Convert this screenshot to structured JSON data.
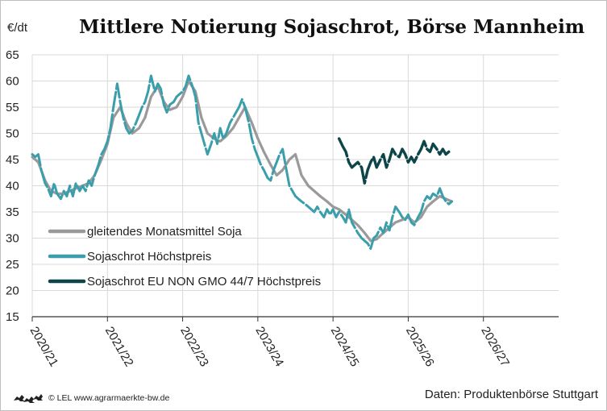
{
  "title": "Mittlere Notierung Sojaschrot, Börse Mannheim",
  "footer": {
    "logo_icon": "baden-wuerttemberg-lions-icon",
    "copyright": "© LEL www.agrarmaerkte-bw.de",
    "source": "Daten: Produktenbörse Stuttgart"
  },
  "colors": {
    "average": "#9a9a9a",
    "soy_high": "#3a9eab",
    "eu_non_gmo": "#0d4549",
    "grid": "#d9d9d9"
  },
  "chart_data": {
    "type": "line",
    "title": "Mittlere Notierung Sojaschrot, Börse Mannheim",
    "ylabel": "€/dt",
    "xlabel": "",
    "ylim": [
      15,
      65
    ],
    "yticks": [
      15,
      20,
      25,
      30,
      35,
      40,
      45,
      50,
      55,
      60,
      65
    ],
    "xlim": [
      2020,
      2027
    ],
    "xticks": [
      {
        "value": 2020,
        "label": "2020/21"
      },
      {
        "value": 2021,
        "label": "2021/22"
      },
      {
        "value": 2022,
        "label": "2022/23"
      },
      {
        "value": 2023,
        "label": "2023/24"
      },
      {
        "value": 2024,
        "label": "2024/25"
      },
      {
        "value": 2025,
        "label": "2025/26"
      },
      {
        "value": 2026,
        "label": "2026/27"
      }
    ],
    "grid": true,
    "legend": "left",
    "series": [
      {
        "name": "gleitendes Monatsmittel Soja",
        "style": "solid",
        "points": [
          [
            2020.0,
            45.5
          ],
          [
            2020.08,
            44.5
          ],
          [
            2020.17,
            41
          ],
          [
            2020.25,
            39
          ],
          [
            2020.33,
            38.5
          ],
          [
            2020.42,
            38.5
          ],
          [
            2020.5,
            39
          ],
          [
            2020.58,
            39.5
          ],
          [
            2020.67,
            40
          ],
          [
            2020.75,
            40.5
          ],
          [
            2020.83,
            42
          ],
          [
            2020.92,
            45
          ],
          [
            2021.0,
            48
          ],
          [
            2021.08,
            53
          ],
          [
            2021.17,
            55
          ],
          [
            2021.25,
            52
          ],
          [
            2021.33,
            50
          ],
          [
            2021.42,
            51
          ],
          [
            2021.5,
            53
          ],
          [
            2021.58,
            57
          ],
          [
            2021.67,
            59
          ],
          [
            2021.75,
            56
          ],
          [
            2021.83,
            54.5
          ],
          [
            2021.92,
            55
          ],
          [
            2022.0,
            57
          ],
          [
            2022.08,
            60
          ],
          [
            2022.17,
            58
          ],
          [
            2022.25,
            53
          ],
          [
            2022.33,
            50
          ],
          [
            2022.42,
            49
          ],
          [
            2022.5,
            48.5
          ],
          [
            2022.58,
            49.5
          ],
          [
            2022.67,
            51
          ],
          [
            2022.75,
            53
          ],
          [
            2022.83,
            55
          ],
          [
            2022.92,
            52
          ],
          [
            2023.0,
            49
          ],
          [
            2023.08,
            46.5
          ],
          [
            2023.17,
            44
          ],
          [
            2023.25,
            42
          ],
          [
            2023.33,
            43
          ],
          [
            2023.42,
            45
          ],
          [
            2023.5,
            46
          ],
          [
            2023.58,
            42
          ],
          [
            2023.67,
            40
          ],
          [
            2023.75,
            39
          ],
          [
            2023.83,
            38
          ],
          [
            2023.92,
            37
          ],
          [
            2024.0,
            36
          ],
          [
            2024.08,
            35.5
          ],
          [
            2024.17,
            34.5
          ],
          [
            2024.25,
            33.5
          ],
          [
            2024.33,
            32.5
          ],
          [
            2024.42,
            31
          ],
          [
            2024.5,
            29.5
          ],
          [
            2024.58,
            29.8
          ],
          [
            2024.67,
            31
          ],
          [
            2024.75,
            32
          ],
          [
            2024.83,
            33
          ],
          [
            2024.92,
            33.5
          ],
          [
            2025.0,
            34
          ],
          [
            2025.08,
            33
          ],
          [
            2025.17,
            34
          ],
          [
            2025.25,
            36
          ],
          [
            2025.33,
            37
          ],
          [
            2025.42,
            38
          ],
          [
            2025.5,
            37.5
          ],
          [
            2025.58,
            37
          ]
        ]
      },
      {
        "name": "Sojaschrot Höchstpreis",
        "style": "dashed",
        "points": [
          [
            2020.0,
            46
          ],
          [
            2020.04,
            45.5
          ],
          [
            2020.08,
            46
          ],
          [
            2020.12,
            43
          ],
          [
            2020.17,
            40.5
          ],
          [
            2020.21,
            39.5
          ],
          [
            2020.25,
            38
          ],
          [
            2020.29,
            40.5
          ],
          [
            2020.33,
            38.5
          ],
          [
            2020.38,
            37.5
          ],
          [
            2020.42,
            39
          ],
          [
            2020.46,
            38
          ],
          [
            2020.5,
            40
          ],
          [
            2020.54,
            38
          ],
          [
            2020.58,
            40.5
          ],
          [
            2020.63,
            39
          ],
          [
            2020.67,
            40
          ],
          [
            2020.71,
            39
          ],
          [
            2020.75,
            41
          ],
          [
            2020.79,
            40
          ],
          [
            2020.83,
            42
          ],
          [
            2020.88,
            44
          ],
          [
            2020.92,
            46
          ],
          [
            2020.96,
            47
          ],
          [
            2021.0,
            48.5
          ],
          [
            2021.04,
            51
          ],
          [
            2021.08,
            55
          ],
          [
            2021.13,
            59.5
          ],
          [
            2021.17,
            56
          ],
          [
            2021.21,
            53
          ],
          [
            2021.25,
            51
          ],
          [
            2021.29,
            50
          ],
          [
            2021.33,
            50.5
          ],
          [
            2021.38,
            52
          ],
          [
            2021.42,
            53.5
          ],
          [
            2021.46,
            55
          ],
          [
            2021.5,
            56
          ],
          [
            2021.54,
            58
          ],
          [
            2021.58,
            61
          ],
          [
            2021.63,
            58
          ],
          [
            2021.67,
            59.5
          ],
          [
            2021.71,
            58.5
          ],
          [
            2021.75,
            55.5
          ],
          [
            2021.79,
            54
          ],
          [
            2021.83,
            55.5
          ],
          [
            2021.88,
            56
          ],
          [
            2021.92,
            57
          ],
          [
            2021.96,
            57.5
          ],
          [
            2022.0,
            58
          ],
          [
            2022.04,
            59
          ],
          [
            2022.08,
            61
          ],
          [
            2022.13,
            59
          ],
          [
            2022.17,
            57
          ],
          [
            2022.21,
            52
          ],
          [
            2022.25,
            50
          ],
          [
            2022.29,
            48
          ],
          [
            2022.33,
            46
          ],
          [
            2022.38,
            48
          ],
          [
            2022.42,
            50
          ],
          [
            2022.46,
            48
          ],
          [
            2022.5,
            51
          ],
          [
            2022.54,
            49
          ],
          [
            2022.58,
            50
          ],
          [
            2022.63,
            52
          ],
          [
            2022.67,
            53
          ],
          [
            2022.71,
            54
          ],
          [
            2022.75,
            55
          ],
          [
            2022.79,
            56.5
          ],
          [
            2022.83,
            55
          ],
          [
            2022.88,
            52
          ],
          [
            2022.92,
            49
          ],
          [
            2022.96,
            47
          ],
          [
            2023.0,
            45.5
          ],
          [
            2023.04,
            44
          ],
          [
            2023.08,
            43
          ],
          [
            2023.13,
            41.5
          ],
          [
            2023.17,
            41
          ],
          [
            2023.21,
            43
          ],
          [
            2023.25,
            44.5
          ],
          [
            2023.29,
            46
          ],
          [
            2023.33,
            47
          ],
          [
            2023.38,
            43
          ],
          [
            2023.42,
            40
          ],
          [
            2023.46,
            39
          ],
          [
            2023.5,
            38
          ],
          [
            2023.54,
            37.5
          ],
          [
            2023.58,
            37
          ],
          [
            2023.63,
            36.5
          ],
          [
            2023.67,
            36
          ],
          [
            2023.71,
            35.5
          ],
          [
            2023.75,
            35
          ],
          [
            2023.79,
            36
          ],
          [
            2023.83,
            35
          ],
          [
            2023.88,
            34
          ],
          [
            2023.92,
            35.5
          ],
          [
            2023.96,
            34.5
          ],
          [
            2024.0,
            35.5
          ],
          [
            2024.04,
            34
          ],
          [
            2024.08,
            35
          ],
          [
            2024.13,
            34
          ],
          [
            2024.17,
            33
          ],
          [
            2024.21,
            35.5
          ],
          [
            2024.25,
            33
          ],
          [
            2024.29,
            32
          ],
          [
            2024.33,
            31
          ],
          [
            2024.38,
            30
          ],
          [
            2024.42,
            29.5
          ],
          [
            2024.46,
            29
          ],
          [
            2024.5,
            28
          ],
          [
            2024.54,
            30
          ],
          [
            2024.58,
            30.5
          ],
          [
            2024.63,
            32
          ],
          [
            2024.67,
            31
          ],
          [
            2024.71,
            33
          ],
          [
            2024.75,
            31.5
          ],
          [
            2024.79,
            34
          ],
          [
            2024.83,
            36
          ],
          [
            2024.88,
            35
          ],
          [
            2024.92,
            34
          ],
          [
            2024.96,
            33.5
          ],
          [
            2025.0,
            34.5
          ],
          [
            2025.04,
            33
          ],
          [
            2025.08,
            32.5
          ],
          [
            2025.13,
            34
          ],
          [
            2025.17,
            35
          ],
          [
            2025.21,
            37
          ],
          [
            2025.25,
            38
          ],
          [
            2025.29,
            37.5
          ],
          [
            2025.33,
            38.5
          ],
          [
            2025.38,
            38
          ],
          [
            2025.42,
            39.5
          ],
          [
            2025.46,
            38
          ],
          [
            2025.5,
            37
          ],
          [
            2025.54,
            36.5
          ],
          [
            2025.58,
            37
          ]
        ]
      },
      {
        "name": "Sojaschrot EU NON GMO 44/7 Höchstpreis",
        "style": "dashed",
        "points": [
          [
            2024.08,
            49
          ],
          [
            2024.13,
            47.5
          ],
          [
            2024.17,
            46.5
          ],
          [
            2024.21,
            44.5
          ],
          [
            2024.25,
            43.5
          ],
          [
            2024.29,
            44
          ],
          [
            2024.33,
            44.5
          ],
          [
            2024.38,
            43.5
          ],
          [
            2024.42,
            40.5
          ],
          [
            2024.46,
            43
          ],
          [
            2024.5,
            44.5
          ],
          [
            2024.54,
            45.5
          ],
          [
            2024.58,
            43.5
          ],
          [
            2024.63,
            45
          ],
          [
            2024.67,
            46
          ],
          [
            2024.71,
            43.5
          ],
          [
            2024.75,
            45
          ],
          [
            2024.79,
            47
          ],
          [
            2024.83,
            46
          ],
          [
            2024.88,
            45.5
          ],
          [
            2024.92,
            47
          ],
          [
            2024.96,
            46
          ],
          [
            2025.0,
            44.5
          ],
          [
            2025.04,
            45.5
          ],
          [
            2025.08,
            44.5
          ],
          [
            2025.13,
            46
          ],
          [
            2025.17,
            47
          ],
          [
            2025.21,
            48.5
          ],
          [
            2025.25,
            47
          ],
          [
            2025.29,
            46.5
          ],
          [
            2025.33,
            48
          ],
          [
            2025.38,
            47
          ],
          [
            2025.42,
            46
          ],
          [
            2025.46,
            47
          ],
          [
            2025.5,
            46
          ],
          [
            2025.54,
            46.5
          ]
        ]
      }
    ]
  }
}
